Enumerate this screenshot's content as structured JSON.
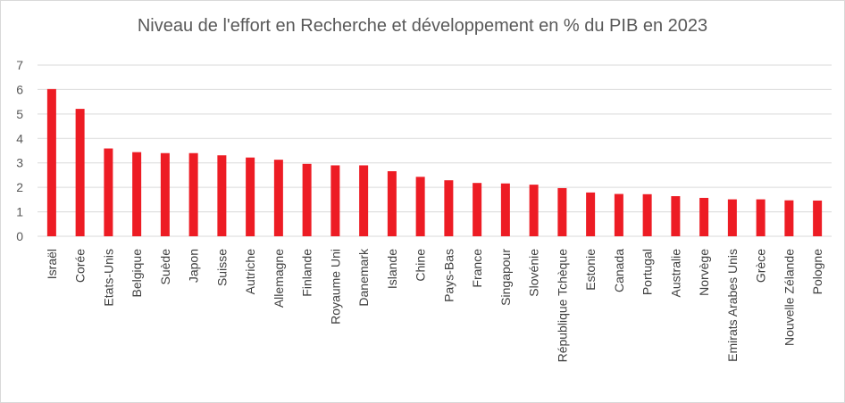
{
  "chart_data": {
    "type": "bar",
    "title": "Niveau de l'effort en Recherche et développement  en % du PIB en 2023",
    "xlabel": "",
    "ylabel": "",
    "ylim": [
      0,
      7
    ],
    "yticks": [
      0,
      1,
      2,
      3,
      4,
      5,
      6,
      7
    ],
    "grid": true,
    "legend": "none",
    "bar_color": "#ED1C24",
    "grid_color": "#D9D9D9",
    "categories": [
      "Israël",
      "Corée",
      "Etats-Unis",
      "Belgique",
      "Suède",
      "Japon",
      "Suisse",
      "Autriche",
      "Allemagne",
      "Finlande",
      "Royaume Uni",
      "Danemark",
      "Islande",
      "Chine",
      "Pays-Bas",
      "France",
      "Singapour",
      "Slovénie",
      "République Tchèque",
      "Estonie",
      "Canada",
      "Portugal",
      "Australie",
      "Norvège",
      "Emirats Arabes Unis",
      "Grèce",
      "Nouvelle Zélande",
      "Pologne"
    ],
    "values": [
      6.02,
      5.21,
      3.59,
      3.44,
      3.4,
      3.4,
      3.31,
      3.22,
      3.13,
      2.96,
      2.9,
      2.9,
      2.66,
      2.43,
      2.29,
      2.18,
      2.16,
      2.11,
      1.97,
      1.79,
      1.73,
      1.72,
      1.64,
      1.57,
      1.51,
      1.51,
      1.47,
      1.46
    ]
  }
}
